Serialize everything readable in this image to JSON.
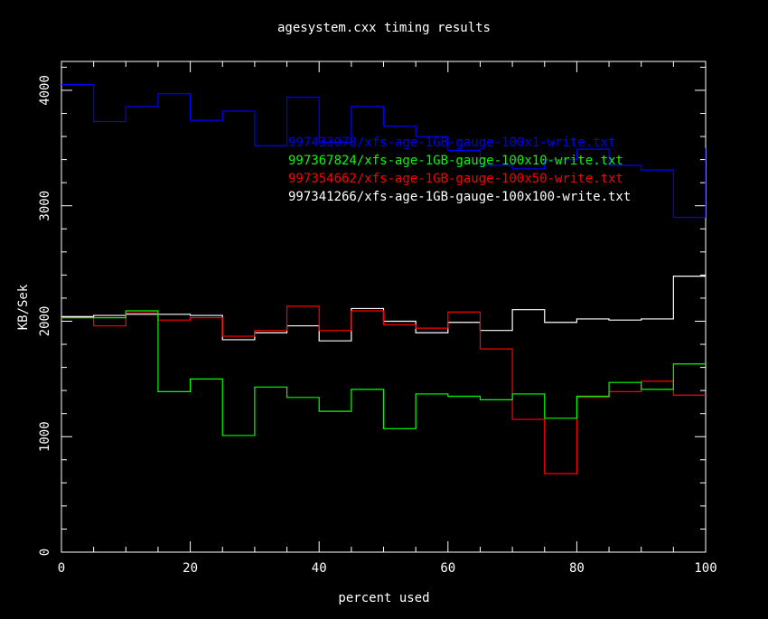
{
  "chart_data": {
    "type": "line",
    "step": true,
    "title": "agesystem.cxx timing results",
    "xlabel": "percent used",
    "ylabel": "KB/Sek",
    "xlim": [
      0,
      100
    ],
    "ylim": [
      0,
      4250
    ],
    "x_ticks": [
      0,
      20,
      40,
      60,
      80,
      100
    ],
    "x_tick_labels": [
      "0",
      "20",
      "40",
      "60",
      "80",
      "100"
    ],
    "y_ticks": [
      0,
      1000,
      2000,
      3000,
      4000
    ],
    "y_tick_labels": [
      "0",
      "1000",
      "2000",
      "3000",
      "4000"
    ],
    "x_minor_step": 5,
    "y_minor_step": 200,
    "background": "#000000",
    "axis_color": "#ffffff",
    "grid": false,
    "legend_position": "upper-right",
    "x_edges": [
      0,
      5,
      10,
      15,
      20,
      25,
      30,
      35,
      40,
      45,
      50,
      55,
      60,
      65,
      70,
      75,
      80,
      85,
      90,
      95,
      100
    ],
    "series": [
      {
        "name": "997433078/xfs-age-1GB-gauge-100x1-write.txt",
        "color": "#0000ff",
        "values": [
          4050,
          3730,
          3860,
          3970,
          3740,
          3820,
          3520,
          3940,
          3550,
          3860,
          3690,
          3600,
          3480,
          3350,
          3320,
          3400,
          3490,
          3350,
          3310,
          2900,
          3500
        ]
      },
      {
        "name": "997367824/xfs-age-1GB-gauge-100x10-write.txt",
        "color": "#00ff00",
        "values": [
          2030,
          2030,
          2090,
          1390,
          1500,
          1010,
          1430,
          1340,
          1220,
          1410,
          1070,
          1370,
          1350,
          1320,
          1370,
          1160,
          1350,
          1470,
          1410,
          1630,
          1630
        ]
      },
      {
        "name": "997354662/xfs-age-1GB-gauge-100x50-write.txt",
        "color": "#ff0000",
        "values": [
          2030,
          1960,
          2070,
          2010,
          2030,
          1870,
          1920,
          2130,
          1920,
          2090,
          1970,
          1940,
          2080,
          1760,
          1150,
          680,
          1340,
          1390,
          1480,
          1360,
          1360
        ]
      },
      {
        "name": "997341266/xfs-age-1GB-gauge-100x100-write.txt",
        "color": "#ffffff",
        "values": [
          2040,
          2050,
          2060,
          2060,
          2050,
          1840,
          1900,
          1960,
          1830,
          2110,
          2000,
          1900,
          1990,
          1920,
          2100,
          1990,
          2020,
          2010,
          2020,
          2390,
          2390
        ]
      }
    ]
  }
}
